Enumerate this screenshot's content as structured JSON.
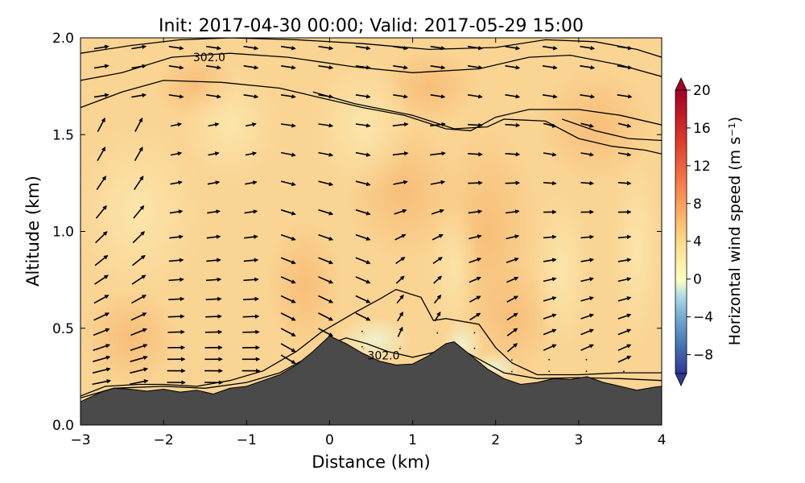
{
  "chart_data": {
    "type": "vertical cross-section",
    "title": "Init: 2017-04-30 00:00; Valid: 2017-05-29 15:00",
    "xlabel": "Distance (km)",
    "ylabel": "Altitude (km)",
    "xlim": [
      -3,
      4
    ],
    "ylim": [
      0,
      2
    ],
    "x_ticks": [
      "−3",
      "−2",
      "−1",
      "0",
      "1",
      "2",
      "3",
      "4"
    ],
    "x_tick_values": [
      -3,
      -2,
      -1,
      0,
      1,
      2,
      3,
      4
    ],
    "y_ticks": [
      "0.0",
      "0.5",
      "1.0",
      "1.5",
      "2.0"
    ],
    "y_tick_values": [
      0,
      0.5,
      1.0,
      1.5,
      2.0
    ],
    "terrain": {
      "color": "#4a4a4a",
      "x": [
        -3,
        -2.75,
        -2.6,
        -2.4,
        -2.2,
        -2.0,
        -1.8,
        -1.6,
        -1.4,
        -1.2,
        -1.0,
        -0.8,
        -0.6,
        -0.4,
        -0.2,
        0.0,
        0.2,
        0.4,
        0.6,
        0.8,
        1.0,
        1.2,
        1.4,
        1.5,
        1.7,
        1.9,
        2.1,
        2.3,
        2.5,
        2.7,
        2.9,
        3.1,
        3.3,
        3.5,
        3.7,
        3.9,
        4.0
      ],
      "y": [
        0.12,
        0.17,
        0.19,
        0.185,
        0.175,
        0.185,
        0.17,
        0.18,
        0.16,
        0.19,
        0.2,
        0.23,
        0.26,
        0.31,
        0.38,
        0.46,
        0.42,
        0.37,
        0.33,
        0.31,
        0.315,
        0.36,
        0.42,
        0.43,
        0.36,
        0.29,
        0.24,
        0.21,
        0.22,
        0.24,
        0.235,
        0.25,
        0.22,
        0.2,
        0.18,
        0.195,
        0.2
      ]
    },
    "contour_labels": [
      {
        "text": "302.0",
        "x": -1.45,
        "y": 1.9
      },
      {
        "text": "302.0",
        "x": 0.65,
        "y": 0.36
      }
    ],
    "colorbar": {
      "label": "Horizontal wind speed (m s⁻¹)",
      "ticks": [
        "20",
        "16",
        "12",
        "8",
        "4",
        "0",
        "−4",
        "−8"
      ],
      "tick_values": [
        20,
        16,
        12,
        8,
        4,
        0,
        -4,
        -8
      ],
      "range": [
        -10,
        20
      ],
      "extend": "both",
      "colormap": "RdYlBu_r"
    }
  }
}
